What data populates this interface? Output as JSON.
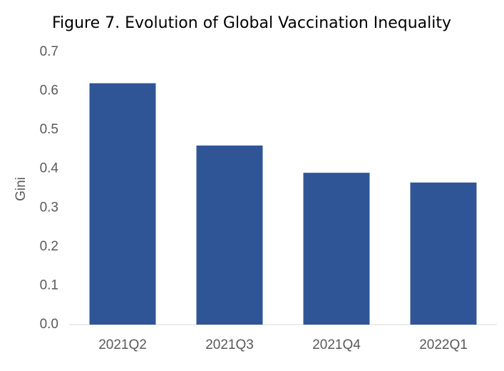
{
  "chart_data": {
    "type": "bar",
    "title": "Figure 7. Evolution of Global Vaccination Inequality",
    "y_label": "Gini",
    "categories": [
      "2021Q2",
      "2021Q3",
      "2021Q4",
      "2022Q1"
    ],
    "values": [
      0.62,
      0.46,
      0.39,
      0.365
    ],
    "color": "#2f5597",
    "ylim": [
      0,
      0.7
    ],
    "yticks": [
      {
        "value": 0,
        "label": "0.0"
      },
      0.1,
      0.2,
      0.3,
      0.4,
      0.5,
      0.6,
      0.7
    ],
    "grid": false
  }
}
